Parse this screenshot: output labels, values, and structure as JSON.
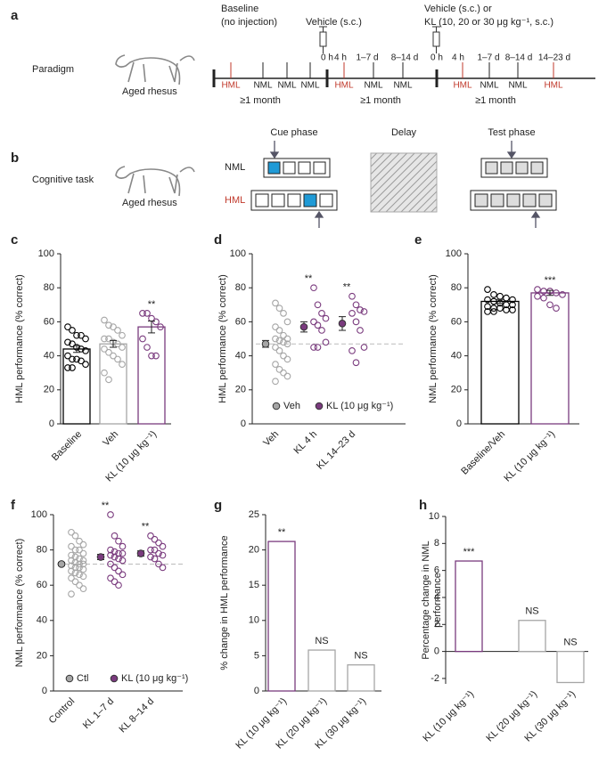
{
  "panel_a": {
    "letter": "a",
    "label": "Paradigm",
    "animal": "Aged rhesus",
    "baseline": [
      "Baseline",
      "(no injection)"
    ],
    "vehicle": "Vehicle (s.c.)",
    "treatment": [
      "Vehicle (s.c.) or",
      "KL (10, 20 or 30 μg kg⁻¹, s.c.)"
    ],
    "times": [
      "0 h",
      "4 h",
      "1–7 d",
      "8–14 d",
      "0 h",
      "4 h",
      "1–7 d",
      "8–14 d",
      "14–23 d"
    ],
    "sessions": [
      {
        "text": "HML",
        "color": "#c0392b"
      },
      {
        "text": "NML",
        "color": "#222222"
      },
      {
        "text": "NML",
        "color": "#222222"
      },
      {
        "text": "NML",
        "color": "#222222"
      },
      {
        "text": "HML",
        "color": "#c0392b"
      },
      {
        "text": "NML",
        "color": "#222222"
      },
      {
        "text": "NML",
        "color": "#222222"
      },
      {
        "text": "HML",
        "color": "#c0392b"
      },
      {
        "text": "NML",
        "color": "#222222"
      },
      {
        "text": "NML",
        "color": "#222222"
      },
      {
        "text": "HML",
        "color": "#c0392b"
      }
    ],
    "durations": [
      "≥1 month",
      "≥1 month",
      "≥1 month"
    ]
  },
  "panel_b": {
    "letter": "b",
    "label": "Cognitive task",
    "animal": "Aged rhesus",
    "cue": "Cue phase",
    "delay": "Delay",
    "test": "Test phase",
    "nml": "NML",
    "hml": "HML"
  },
  "chart_data": [
    {
      "type": "bar",
      "panel": "c",
      "ylabel": "HML performance (% correct)",
      "categories": [
        "Baseline",
        "Veh",
        "KL (10 μg kg⁻¹)"
      ],
      "values": [
        44,
        47,
        57
      ],
      "errors": [
        2,
        2,
        3.5
      ],
      "colors": [
        "#000000",
        "#a6a6a6",
        "#7a3b7e"
      ],
      "points": [
        [
          57,
          55,
          52,
          52,
          50,
          48,
          47,
          45,
          44,
          43,
          40,
          38,
          38,
          37,
          35,
          33,
          33
        ],
        [
          61,
          58,
          57,
          55,
          52,
          50,
          50,
          48,
          47,
          45,
          44,
          42,
          40,
          38,
          35,
          30,
          26
        ],
        [
          65,
          65,
          62,
          60,
          57,
          50,
          45,
          40,
          40
        ]
      ],
      "annotations": [
        null,
        null,
        "**"
      ],
      "ylim": [
        0,
        100
      ],
      "yticks": [
        0,
        20,
        40,
        60,
        80,
        100
      ]
    },
    {
      "type": "dot",
      "panel": "d",
      "ylabel": "HML performance (% correct)",
      "categories": [
        "Veh",
        "KL 4 h",
        "KL 14–23 d"
      ],
      "values": [
        47,
        57,
        59
      ],
      "errors": [
        2,
        3,
        4
      ],
      "colors": [
        "#a6a6a6",
        "#7a3b7e",
        "#7a3b7e"
      ],
      "points": [
        [
          71,
          68,
          65,
          60,
          57,
          55,
          52,
          50,
          50,
          49,
          48,
          47,
          45,
          43,
          40,
          38,
          35,
          32,
          30,
          28,
          25
        ],
        [
          80,
          70,
          65,
          62,
          60,
          58,
          55,
          48,
          45,
          45
        ],
        [
          75,
          70,
          67,
          66,
          65,
          60,
          55,
          45,
          43,
          36
        ]
      ],
      "annotations": [
        null,
        "**",
        "**"
      ],
      "reference_line": 47,
      "legend": [
        {
          "name": "Veh",
          "color": "#a6a6a6"
        },
        {
          "name": "KL (10 μg kg⁻¹)",
          "color": "#7a3b7e"
        }
      ],
      "ylim": [
        0,
        100
      ],
      "yticks": [
        0,
        20,
        40,
        60,
        80,
        100
      ]
    },
    {
      "type": "bar",
      "panel": "e",
      "ylabel": "NML performance (% correct)",
      "categories": [
        "Baseline/Veh",
        "KL (10 μg kg⁻¹)"
      ],
      "values": [
        72,
        77
      ],
      "errors": [
        1.2,
        1.5
      ],
      "colors": [
        "#000000",
        "#7a3b7e"
      ],
      "points": [
        [
          79,
          76,
          75,
          74,
          73,
          73,
          72,
          71,
          70,
          70,
          69,
          68,
          68,
          67,
          67,
          66,
          66
        ],
        [
          79,
          78,
          78,
          77,
          76,
          75,
          74,
          70,
          68
        ]
      ],
      "annotations": [
        null,
        "***"
      ],
      "ylim": [
        0,
        100
      ],
      "yticks": [
        0,
        20,
        40,
        60,
        80,
        100
      ]
    },
    {
      "type": "dot",
      "panel": "f",
      "ylabel": "NML performance (% correct)",
      "categories": [
        "Control",
        "KL 1–7 d",
        "KL 8–14 d"
      ],
      "values": [
        72,
        76,
        78
      ],
      "errors": [
        1,
        1.5,
        1.5
      ],
      "colors": [
        "#a6a6a6",
        "#7a3b7e",
        "#7a3b7e"
      ],
      "points": [
        [
          90,
          88,
          85,
          83,
          82,
          80,
          80,
          78,
          77,
          76,
          75,
          74,
          74,
          73,
          72,
          72,
          71,
          70,
          70,
          69,
          68,
          67,
          66,
          65,
          64,
          62,
          60,
          58,
          55
        ],
        [
          100,
          88,
          85,
          82,
          80,
          79,
          78,
          78,
          77,
          76,
          75,
          74,
          72,
          70,
          68,
          66,
          64,
          62,
          60
        ],
        [
          88,
          86,
          84,
          82,
          80,
          80,
          78,
          77,
          76,
          75,
          72,
          70
        ]
      ],
      "annotations": [
        null,
        "**",
        "**"
      ],
      "reference_line": 72,
      "legend": [
        {
          "name": "Ctl",
          "color": "#a6a6a6"
        },
        {
          "name": "KL (10 μg kg⁻¹)",
          "color": "#7a3b7e"
        }
      ],
      "ylim": [
        0,
        100
      ],
      "yticks": [
        0,
        20,
        40,
        60,
        80,
        100
      ]
    },
    {
      "type": "bar",
      "panel": "g",
      "ylabel": "% change in HML performance",
      "categories": [
        "KL (10 μg kg⁻¹)",
        "KL (20 μg kg⁻¹)",
        "KL (30 μg kg⁻¹)"
      ],
      "values": [
        21.2,
        5.8,
        3.7
      ],
      "colors": [
        "#7a3b7e",
        "#a6a6a6",
        "#a6a6a6"
      ],
      "annotations": [
        "**",
        "NS",
        "NS"
      ],
      "ylim": [
        0,
        25
      ],
      "yticks": [
        0,
        5,
        10,
        15,
        20,
        25
      ]
    },
    {
      "type": "bar",
      "panel": "h",
      "ylabel": [
        "Percentage change in NML",
        "performance"
      ],
      "categories": [
        "KL (10 μg kg⁻¹)",
        "KL (20 μg kg⁻¹)",
        "KL (30 μg kg⁻¹)"
      ],
      "values": [
        6.7,
        2.3,
        -2.3
      ],
      "colors": [
        "#7a3b7e",
        "#a6a6a6",
        "#a6a6a6"
      ],
      "annotations": [
        "***",
        "NS",
        "NS"
      ],
      "ylim": [
        -2.4,
        10
      ],
      "yticks": [
        -2,
        0,
        2,
        4,
        6,
        8,
        10
      ]
    }
  ]
}
